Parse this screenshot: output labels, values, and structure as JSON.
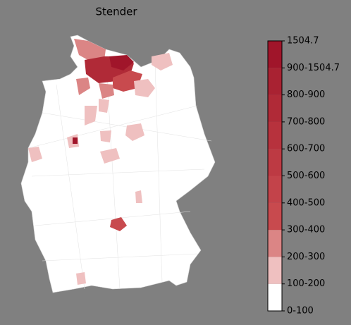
{
  "title": "Stender",
  "colorbar": {
    "labels": [
      "0-100",
      "100-200",
      "200-300",
      "300-400",
      "400-500",
      "500-600",
      "600-700",
      "700-800",
      "800-900",
      "900-1504.7",
      "1504.7"
    ],
    "colors": [
      "#ffffff",
      "#efc0c0",
      "#db8585",
      "#c84a4e",
      "#c3434a",
      "#bd3a43",
      "#b7323d",
      "#b02a37",
      "#a92232",
      "#a0152a"
    ]
  }
}
